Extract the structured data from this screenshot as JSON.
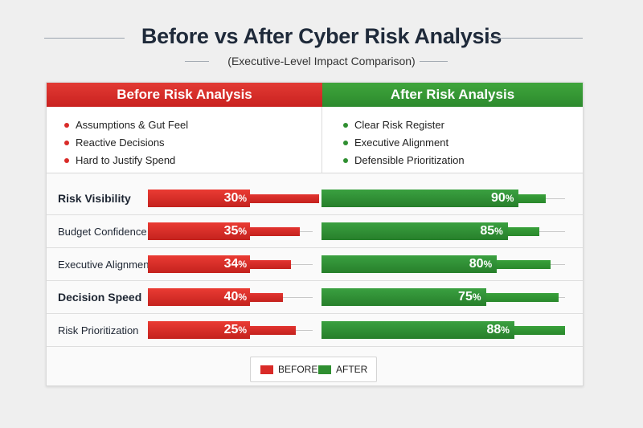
{
  "title": "Before vs  After Cyber Risk Analysis",
  "subtitle": "(Executive-Level Impact Comparison)",
  "colors": {
    "before": "#d92b28",
    "after": "#2f8f31",
    "title": "#1f2a3a"
  },
  "before_panel": {
    "header": "Before Risk Analysis",
    "bullets": [
      "Assumptions & Gut Feel",
      "Reactive Decisions",
      "Hard to Justify Spend"
    ]
  },
  "after_panel": {
    "header": "After Risk Analysis",
    "bullets": [
      "Clear Risk Register",
      "Executive Alignment",
      "Defensible Prioritization"
    ]
  },
  "chart_data": {
    "type": "bar",
    "categories": [
      "Risk Visibility",
      "Budget Confidence",
      "Executive Alignment",
      "Decision Speed",
      "Risk Prioritization"
    ],
    "series": [
      {
        "name": "BEFORE",
        "values": [
          30,
          35,
          34,
          40,
          25
        ]
      },
      {
        "name": "AFTER",
        "values": [
          90,
          85,
          80,
          75,
          88
        ]
      }
    ],
    "value_labels": {
      "before": [
        "30",
        "35",
        "34",
        "40",
        "25"
      ],
      "after": [
        "90",
        "85",
        "80",
        "75",
        "88"
      ]
    },
    "value_suffix": "%",
    "orientation": "horizontal",
    "legend": [
      "BEFORE",
      "AFTER"
    ],
    "legend_position": "bottom-center"
  }
}
